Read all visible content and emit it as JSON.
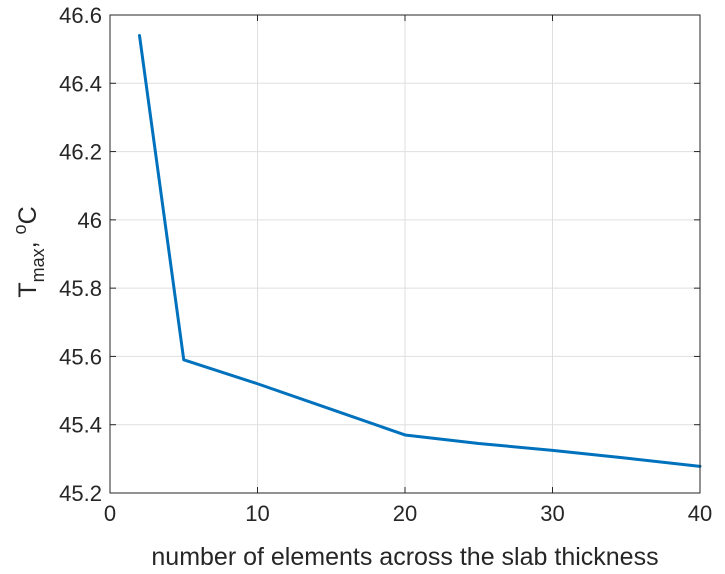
{
  "chart_data": {
    "type": "line",
    "title": "",
    "xlabel": "number of elements across the slab thickness",
    "ylabel": {
      "main": "T",
      "subscript": "max",
      "separator": ", ",
      "superscript": "o",
      "unit": "C"
    },
    "xlim": [
      0,
      40
    ],
    "ylim": [
      45.2,
      46.6
    ],
    "xticks": [
      0,
      10,
      20,
      30,
      40
    ],
    "xtick_labels": [
      "0",
      "10",
      "20",
      "30",
      "40"
    ],
    "yticks": [
      45.2,
      45.4,
      45.6,
      45.8,
      46.0,
      46.2,
      46.4,
      46.6
    ],
    "ytick_labels": [
      "45.2",
      "45.4",
      "45.6",
      "45.8",
      "46",
      "46.2",
      "46.4",
      "46.6"
    ],
    "grid": true,
    "series": [
      {
        "color": "#0072BD",
        "x": [
          2,
          5,
          10,
          15,
          20,
          25,
          30,
          35,
          40
        ],
        "y": [
          46.54,
          45.59,
          45.52,
          45.445,
          45.37,
          45.345,
          45.325,
          45.302,
          45.278
        ]
      }
    ]
  }
}
